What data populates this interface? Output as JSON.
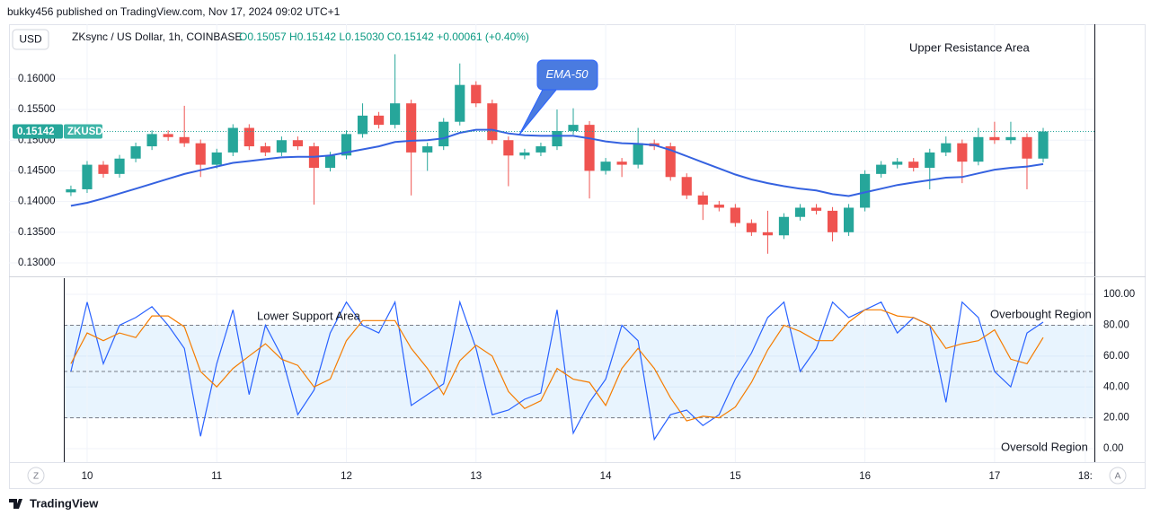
{
  "header": "bukky456 published on TradingView.com, Nov 17, 2024 09:02 UTC+1",
  "currency_button": "USD",
  "scale_buttons": [
    "Z",
    "A"
  ],
  "footer": "TradingView",
  "chart_data": [
    {
      "type": "candlestick",
      "title": "ZKsync / US Dollar, 1h, COINBASE",
      "ohlc": "O0.15057 H0.15142 L0.15030 C0.15142 +0.00061 (+0.40%)",
      "symbol": "ZKUSD",
      "last_price": {
        "value": 0.15142,
        "label": "0.15142"
      },
      "annotations": [
        "Upper Resistance Area"
      ],
      "up_color": "#26a69a",
      "down_color": "#ef5350",
      "xlim": [
        9.82,
        17.77
      ],
      "ylim": [
        0.12796,
        0.16889
      ],
      "yticks": [
        {
          "value": 0.13,
          "label": "0.13000"
        },
        {
          "value": 0.135,
          "label": "0.13500"
        },
        {
          "value": 0.14,
          "label": "0.14000"
        },
        {
          "value": 0.145,
          "label": "0.14500"
        },
        {
          "value": 0.15,
          "label": "0.15000"
        },
        {
          "value": 0.155,
          "label": "0.15500"
        },
        {
          "value": 0.16,
          "label": "0.16000"
        }
      ],
      "grid": true,
      "x": [
        9.875,
        10,
        10.125,
        10.25,
        10.375,
        10.5,
        10.625,
        10.75,
        10.875,
        11,
        11.125,
        11.25,
        11.375,
        11.5,
        11.625,
        11.75,
        11.875,
        12,
        12.125,
        12.25,
        12.375,
        12.5,
        12.625,
        12.75,
        12.875,
        13,
        13.125,
        13.25,
        13.375,
        13.5,
        13.625,
        13.75,
        13.875,
        14,
        14.125,
        14.25,
        14.375,
        14.5,
        14.625,
        14.75,
        14.875,
        15,
        15.125,
        15.25,
        15.375,
        15.5,
        15.625,
        15.75,
        15.875,
        16,
        16.125,
        16.25,
        16.375,
        16.5,
        16.625,
        16.75,
        16.875,
        17,
        17.125,
        17.25,
        17.375
      ],
      "open": [
        0.1415,
        0.142,
        0.146,
        0.1445,
        0.147,
        0.149,
        0.151,
        0.1505,
        0.1495,
        0.146,
        0.148,
        0.152,
        0.149,
        0.148,
        0.15,
        0.149,
        0.1455,
        0.1475,
        0.151,
        0.154,
        0.1525,
        0.156,
        0.148,
        0.149,
        0.153,
        0.159,
        0.156,
        0.15,
        0.1475,
        0.148,
        0.149,
        0.1515,
        0.1525,
        0.145,
        0.1465,
        0.146,
        0.1495,
        0.149,
        0.144,
        0.141,
        0.1395,
        0.139,
        0.1365,
        0.135,
        0.1345,
        0.1375,
        0.139,
        0.1385,
        0.135,
        0.139,
        0.1445,
        0.146,
        0.1465,
        0.1455,
        0.148,
        0.1495,
        0.1465,
        0.1505,
        0.15,
        0.1505,
        0.147
      ],
      "high": [
        0.1426,
        0.1466,
        0.1466,
        0.1476,
        0.1496,
        0.1516,
        0.1516,
        0.1556,
        0.1501,
        0.1486,
        0.1526,
        0.1526,
        0.1496,
        0.1506,
        0.1506,
        0.1496,
        0.1481,
        0.1516,
        0.156,
        0.1546,
        0.164,
        0.1566,
        0.1496,
        0.1536,
        0.1625,
        0.1596,
        0.1566,
        0.1506,
        0.1486,
        0.1496,
        0.155,
        0.1552,
        0.1531,
        0.1471,
        0.1471,
        0.152,
        0.1501,
        0.1496,
        0.1446,
        0.1416,
        0.1401,
        0.1396,
        0.1371,
        0.1385,
        0.1381,
        0.1396,
        0.1396,
        0.1391,
        0.1396,
        0.1451,
        0.1466,
        0.1471,
        0.1471,
        0.1486,
        0.1506,
        0.1501,
        0.152,
        0.153,
        0.153,
        0.1511,
        0.152
      ],
      "low": [
        0.1409,
        0.1414,
        0.1439,
        0.1439,
        0.1464,
        0.1484,
        0.1499,
        0.1489,
        0.144,
        0.1454,
        0.1474,
        0.1484,
        0.1474,
        0.1474,
        0.1484,
        0.1395,
        0.1449,
        0.1469,
        0.1504,
        0.1519,
        0.1519,
        0.141,
        0.145,
        0.1484,
        0.1524,
        0.1554,
        0.1494,
        0.1425,
        0.1469,
        0.1474,
        0.1484,
        0.1509,
        0.1405,
        0.1444,
        0.144,
        0.1454,
        0.1484,
        0.1434,
        0.1404,
        0.137,
        0.1384,
        0.1359,
        0.1344,
        0.1315,
        0.1339,
        0.1369,
        0.1379,
        0.1335,
        0.1344,
        0.1384,
        0.1439,
        0.1454,
        0.1449,
        0.142,
        0.1474,
        0.143,
        0.1459,
        0.1494,
        0.1494,
        0.142,
        0.1464
      ],
      "close": [
        0.142,
        0.146,
        0.1445,
        0.147,
        0.149,
        0.151,
        0.1505,
        0.1495,
        0.146,
        0.148,
        0.152,
        0.149,
        0.148,
        0.15,
        0.149,
        0.1455,
        0.1475,
        0.151,
        0.154,
        0.1525,
        0.156,
        0.148,
        0.149,
        0.153,
        0.159,
        0.156,
        0.15,
        0.1475,
        0.148,
        0.149,
        0.1515,
        0.1525,
        0.145,
        0.1465,
        0.146,
        0.1495,
        0.149,
        0.144,
        0.141,
        0.1395,
        0.139,
        0.1365,
        0.135,
        0.1345,
        0.1375,
        0.139,
        0.1385,
        0.135,
        0.139,
        0.1445,
        0.146,
        0.1465,
        0.1455,
        0.148,
        0.1495,
        0.1465,
        0.1505,
        0.15,
        0.1505,
        0.147,
        0.15142
      ],
      "series": [
        {
          "name": "EMA-50",
          "color": "#3562e0",
          "values": [
            0.1393,
            0.1398,
            0.1405,
            0.1413,
            0.1421,
            0.1429,
            0.1437,
            0.1445,
            0.1451,
            0.1457,
            0.1463,
            0.1466,
            0.1469,
            0.1472,
            0.1473,
            0.1473,
            0.1475,
            0.148,
            0.1485,
            0.149,
            0.1497,
            0.1499,
            0.15,
            0.1503,
            0.1512,
            0.1517,
            0.1517,
            0.1511,
            0.1508,
            0.1507,
            0.1507,
            0.1507,
            0.1503,
            0.1498,
            0.1495,
            0.1494,
            0.1492,
            0.1484,
            0.1474,
            0.1464,
            0.1454,
            0.1444,
            0.1436,
            0.143,
            0.1425,
            0.1421,
            0.1418,
            0.1412,
            0.1409,
            0.1415,
            0.1421,
            0.1427,
            0.1431,
            0.1435,
            0.1439,
            0.144,
            0.1446,
            0.1452,
            0.1455,
            0.1457,
            0.1461
          ]
        }
      ]
    },
    {
      "type": "line",
      "annotations": [
        "Lower Support Area",
        "Overbought Region",
        "Oversold Region"
      ],
      "xlim": [
        9.82,
        17.77
      ],
      "ylim": [
        -8.7,
        110.5
      ],
      "yticks": [
        {
          "value": 0,
          "label": "0.00"
        },
        {
          "value": 20,
          "label": "20.00"
        },
        {
          "value": 40,
          "label": "40.00"
        },
        {
          "value": 60,
          "label": "60.00"
        },
        {
          "value": 80,
          "label": "80.00"
        },
        {
          "value": 100,
          "label": "100.00"
        }
      ],
      "xticks": [
        10,
        11,
        12,
        13,
        14,
        15,
        16,
        17,
        {
          "value": 17.7,
          "label": "18:"
        }
      ],
      "levels": [
        20,
        50,
        80
      ],
      "band_color": "#2196f3",
      "grid": true,
      "x": [
        9.875,
        10,
        10.125,
        10.25,
        10.375,
        10.5,
        10.625,
        10.75,
        10.875,
        11,
        11.125,
        11.25,
        11.375,
        11.5,
        11.625,
        11.75,
        11.875,
        12,
        12.125,
        12.25,
        12.375,
        12.5,
        12.625,
        12.75,
        12.875,
        13,
        13.125,
        13.25,
        13.375,
        13.5,
        13.625,
        13.75,
        13.875,
        14,
        14.125,
        14.25,
        14.375,
        14.5,
        14.625,
        14.75,
        14.875,
        15,
        15.125,
        15.25,
        15.375,
        15.5,
        15.625,
        15.75,
        15.875,
        16,
        16.125,
        16.25,
        16.375,
        16.5,
        16.625,
        16.75,
        16.875,
        17,
        17.125,
        17.25,
        17.375
      ],
      "series": [
        {
          "color": "#2962ff",
          "values": [
            50,
            95,
            55,
            80,
            85,
            92,
            80,
            65,
            8,
            55,
            90,
            35,
            80,
            60,
            22,
            38,
            75,
            95,
            80,
            75,
            95,
            28,
            35,
            42,
            95,
            65,
            22,
            25,
            32,
            36,
            90,
            10,
            30,
            45,
            80,
            70,
            6,
            22,
            25,
            15,
            22,
            45,
            62,
            85,
            95,
            50,
            65,
            95,
            85,
            90,
            95,
            75,
            85,
            80,
            30,
            95,
            85,
            50,
            40,
            75,
            82
          ]
        },
        {
          "color": "#f57c00",
          "values": [
            55,
            75,
            70,
            75,
            72,
            86,
            86,
            79,
            50,
            40,
            52,
            60,
            68,
            58,
            54,
            40,
            45,
            70,
            83,
            83,
            83,
            65,
            52,
            35,
            57,
            67,
            60,
            37,
            26,
            31,
            52,
            45,
            43,
            28,
            52,
            65,
            52,
            33,
            18,
            21,
            20,
            27,
            43,
            64,
            80,
            76,
            70,
            70,
            82,
            90,
            90,
            86,
            85,
            80,
            65,
            68,
            70,
            77,
            58,
            55,
            72
          ]
        }
      ]
    }
  ]
}
